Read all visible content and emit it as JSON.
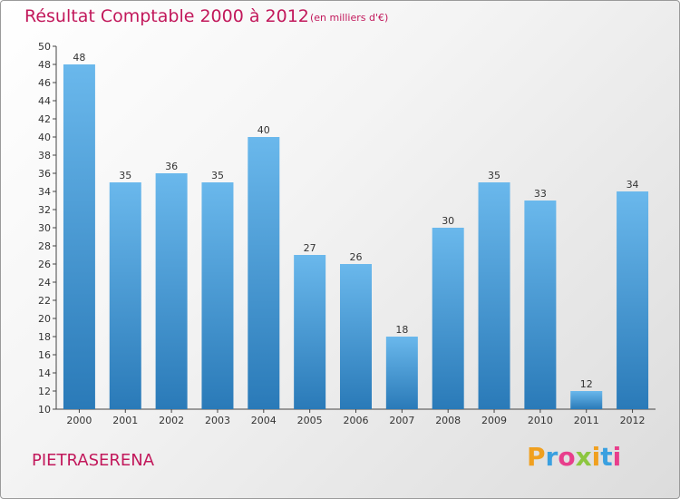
{
  "header": {
    "title": "Résultat Comptable 2000 à 2012",
    "unit": "(en milliers d'€)"
  },
  "footer": {
    "commune": "PIETRASERENA",
    "logo_letters": [
      "P",
      "r",
      "o",
      "x",
      "i",
      "t",
      "i"
    ],
    "logo_colors": [
      "#f0a020",
      "#3aa0e0",
      "#e83e8c",
      "#8cc63f",
      "#f0a020",
      "#3aa0e0",
      "#e83e8c"
    ]
  },
  "colors": {
    "bar_top": "#6ab8ec",
    "bar_bottom": "#2a7ab8",
    "accent": "#c2185b"
  },
  "chart_data": {
    "type": "bar",
    "title": "Résultat Comptable 2000 à 2012",
    "subtitle": "(en milliers d'€)",
    "categories": [
      "2000",
      "2001",
      "2002",
      "2003",
      "2004",
      "2005",
      "2006",
      "2007",
      "2008",
      "2009",
      "2010",
      "2011",
      "2012"
    ],
    "values": [
      48,
      35,
      36,
      35,
      40,
      27,
      26,
      18,
      30,
      35,
      33,
      12,
      34
    ],
    "ylim": [
      10,
      50
    ],
    "yticks": [
      10,
      12,
      14,
      16,
      18,
      20,
      22,
      24,
      26,
      28,
      30,
      32,
      34,
      36,
      38,
      40,
      42,
      44,
      46,
      48,
      50
    ],
    "grid": false,
    "xlabel": "",
    "ylabel": ""
  }
}
